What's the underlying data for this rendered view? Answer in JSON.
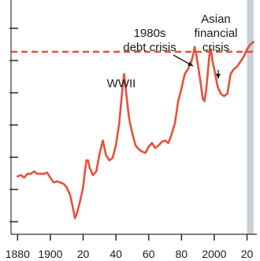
{
  "chart_data": {
    "type": "line",
    "title": "",
    "xlabel": "",
    "ylabel": "",
    "x_tick_labels": [
      {
        "x": 1880,
        "label": "1880"
      },
      {
        "x": 1900,
        "label": "1900"
      },
      {
        "x": 1920,
        "label": "20"
      },
      {
        "x": 1940,
        "label": "40"
      },
      {
        "x": 1960,
        "label": "60"
      },
      {
        "x": 1980,
        "label": "80"
      },
      {
        "x": 2000,
        "label": "2000"
      },
      {
        "x": 2020,
        "label": "20"
      }
    ],
    "y_ticks": 8,
    "grid": false,
    "colors": {
      "line": "#e8503a",
      "reference_line": "#e8503a",
      "shaded_band": "#c9cfd6",
      "axis": "#333333",
      "text": "#1a1a1a"
    },
    "series": [
      {
        "points": [
          [
            1880,
            38.5
          ],
          [
            1882,
            39
          ],
          [
            1884,
            38
          ],
          [
            1886,
            39.5
          ],
          [
            1888,
            39.5
          ],
          [
            1890,
            40.5
          ],
          [
            1892,
            39.5
          ],
          [
            1894,
            39.5
          ],
          [
            1896,
            39.5
          ],
          [
            1898,
            40
          ],
          [
            1900,
            38
          ],
          [
            1902,
            36
          ],
          [
            1904,
            36.5
          ],
          [
            1906,
            36
          ],
          [
            1908,
            35.5
          ],
          [
            1910,
            34
          ],
          [
            1912,
            31
          ],
          [
            1913,
            28
          ],
          [
            1914,
            25
          ],
          [
            1915,
            21.5
          ],
          [
            1916,
            23
          ],
          [
            1918,
            28
          ],
          [
            1920,
            34
          ],
          [
            1921,
            40
          ],
          [
            1922,
            45
          ],
          [
            1923,
            45
          ],
          [
            1924,
            42
          ],
          [
            1926,
            39
          ],
          [
            1928,
            40.5
          ],
          [
            1930,
            47.5
          ],
          [
            1932,
            53
          ],
          [
            1933,
            50
          ],
          [
            1934,
            47
          ],
          [
            1936,
            45
          ],
          [
            1938,
            46
          ],
          [
            1940,
            51
          ],
          [
            1942,
            60
          ],
          [
            1944,
            74
          ],
          [
            1945,
            80
          ],
          [
            1946,
            74
          ],
          [
            1948,
            62
          ],
          [
            1950,
            56
          ],
          [
            1952,
            51
          ],
          [
            1954,
            49.5
          ],
          [
            1956,
            48.5
          ],
          [
            1958,
            48
          ],
          [
            1960,
            50.5
          ],
          [
            1962,
            52
          ],
          [
            1964,
            50
          ],
          [
            1966,
            51
          ],
          [
            1968,
            52.5
          ],
          [
            1970,
            53
          ],
          [
            1972,
            52
          ],
          [
            1974,
            55.5
          ],
          [
            1976,
            60
          ],
          [
            1978,
            69
          ],
          [
            1980,
            74
          ],
          [
            1982,
            80
          ],
          [
            1984,
            82
          ],
          [
            1986,
            85
          ],
          [
            1987,
            87.5
          ],
          [
            1988,
            91
          ],
          [
            1989,
            88
          ],
          [
            1990,
            84
          ],
          [
            1992,
            75
          ],
          [
            1993,
            70
          ],
          [
            1994,
            69
          ],
          [
            1995,
            73
          ],
          [
            1996,
            80
          ],
          [
            1997,
            87.5
          ],
          [
            1998,
            90
          ],
          [
            1999,
            85
          ],
          [
            2000,
            82
          ],
          [
            2002,
            75
          ],
          [
            2004,
            72
          ],
          [
            2006,
            71
          ],
          [
            2008,
            72
          ],
          [
            2010,
            80
          ],
          [
            2012,
            82
          ],
          [
            2014,
            83
          ],
          [
            2016,
            85
          ],
          [
            2018,
            87
          ],
          [
            2020,
            90
          ],
          [
            2022,
            92
          ],
          [
            2024,
            93
          ]
        ]
      }
    ],
    "reference_line_y": 89,
    "shaded_band": [
      2020,
      2024
    ],
    "annotations": [
      {
        "lines": [
          "1980s",
          "debt crisis"
        ],
        "target": [
          1988,
          91
        ]
      },
      {
        "lines": [
          "Asian",
          "financial",
          "crisis"
        ],
        "target": [
          1998,
          90
        ]
      },
      {
        "lines": [
          "WWII"
        ],
        "target": [
          1945,
          80
        ]
      }
    ],
    "xlim": [
      1876,
      2026
    ],
    "ylim": [
      15,
      110
    ]
  }
}
